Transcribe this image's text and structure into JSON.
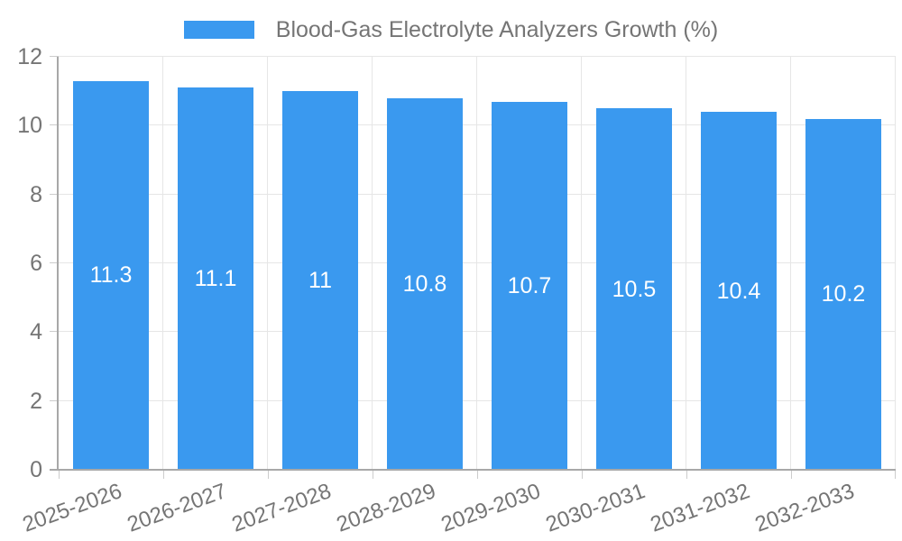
{
  "legend": {
    "series_label": "Blood-Gas Electrolyte Analyzers Growth (%)"
  },
  "chart_data": {
    "type": "bar",
    "title": "Blood-Gas Electrolyte Analyzers Growth (%)",
    "categories": [
      "2025-2026",
      "2026-2027",
      "2027-2028",
      "2028-2029",
      "2029-2030",
      "2030-2031",
      "2031-2032",
      "2032-2033"
    ],
    "values": [
      11.3,
      11.1,
      11,
      10.8,
      10.7,
      10.5,
      10.4,
      10.2
    ],
    "value_labels": [
      "11.3",
      "11.1",
      "11",
      "10.8",
      "10.7",
      "10.5",
      "10.4",
      "10.2"
    ],
    "xlabel": "",
    "ylabel": "",
    "y_ticks": [
      0,
      2,
      4,
      6,
      8,
      10,
      12
    ],
    "ylim": [
      0,
      12
    ],
    "grid": true,
    "legend_position": "top",
    "colors": {
      "bar": "#3a99ef",
      "value_label": "#ffffff",
      "tick_text": "#757575",
      "axis_line": "#a8a8a8",
      "grid_line": "#e6e6e6",
      "tick_mark": "#cccccc",
      "background": "#ffffff"
    }
  }
}
